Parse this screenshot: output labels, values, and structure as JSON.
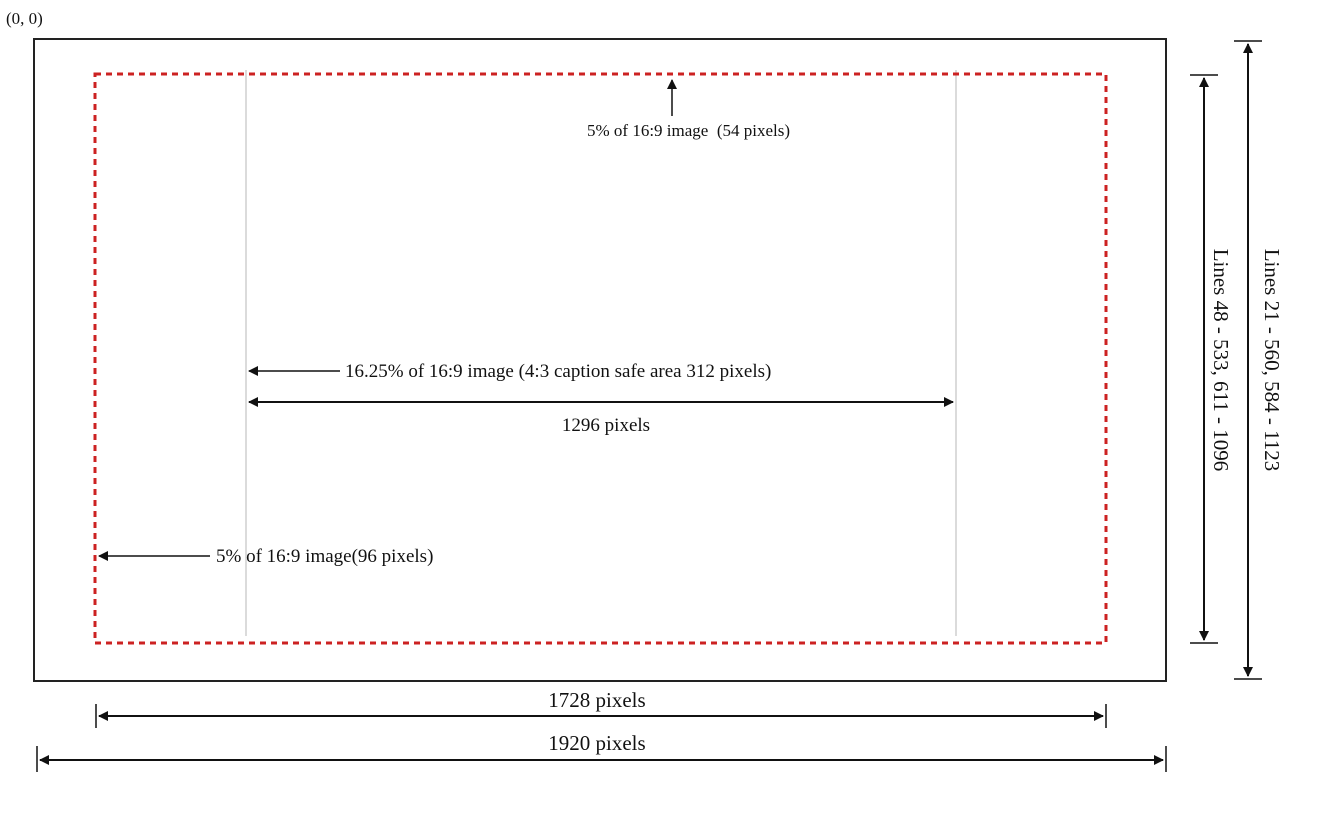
{
  "diagram": {
    "origin_label": "(0, 0)",
    "labels": {
      "top_margin": "5% of 16:9 image  (54 pixels)",
      "caption_safe": "16.25% of 16:9 image (4:3 caption safe area 312 pixels)",
      "inner_width": "1296 pixels",
      "left_margin": "5% of 16:9 image(96 pixels)",
      "safe_width": "1728 pixels",
      "full_width": "1920 pixels",
      "safe_lines": "Lines 48 - 533, 611 - 1096",
      "full_lines": "Lines 21 - 560, 584 - 1123"
    },
    "colors": {
      "frame": "#222222",
      "safe_area": "#cc2222",
      "guide": "#cfcfcf",
      "text": "#111111"
    }
  }
}
